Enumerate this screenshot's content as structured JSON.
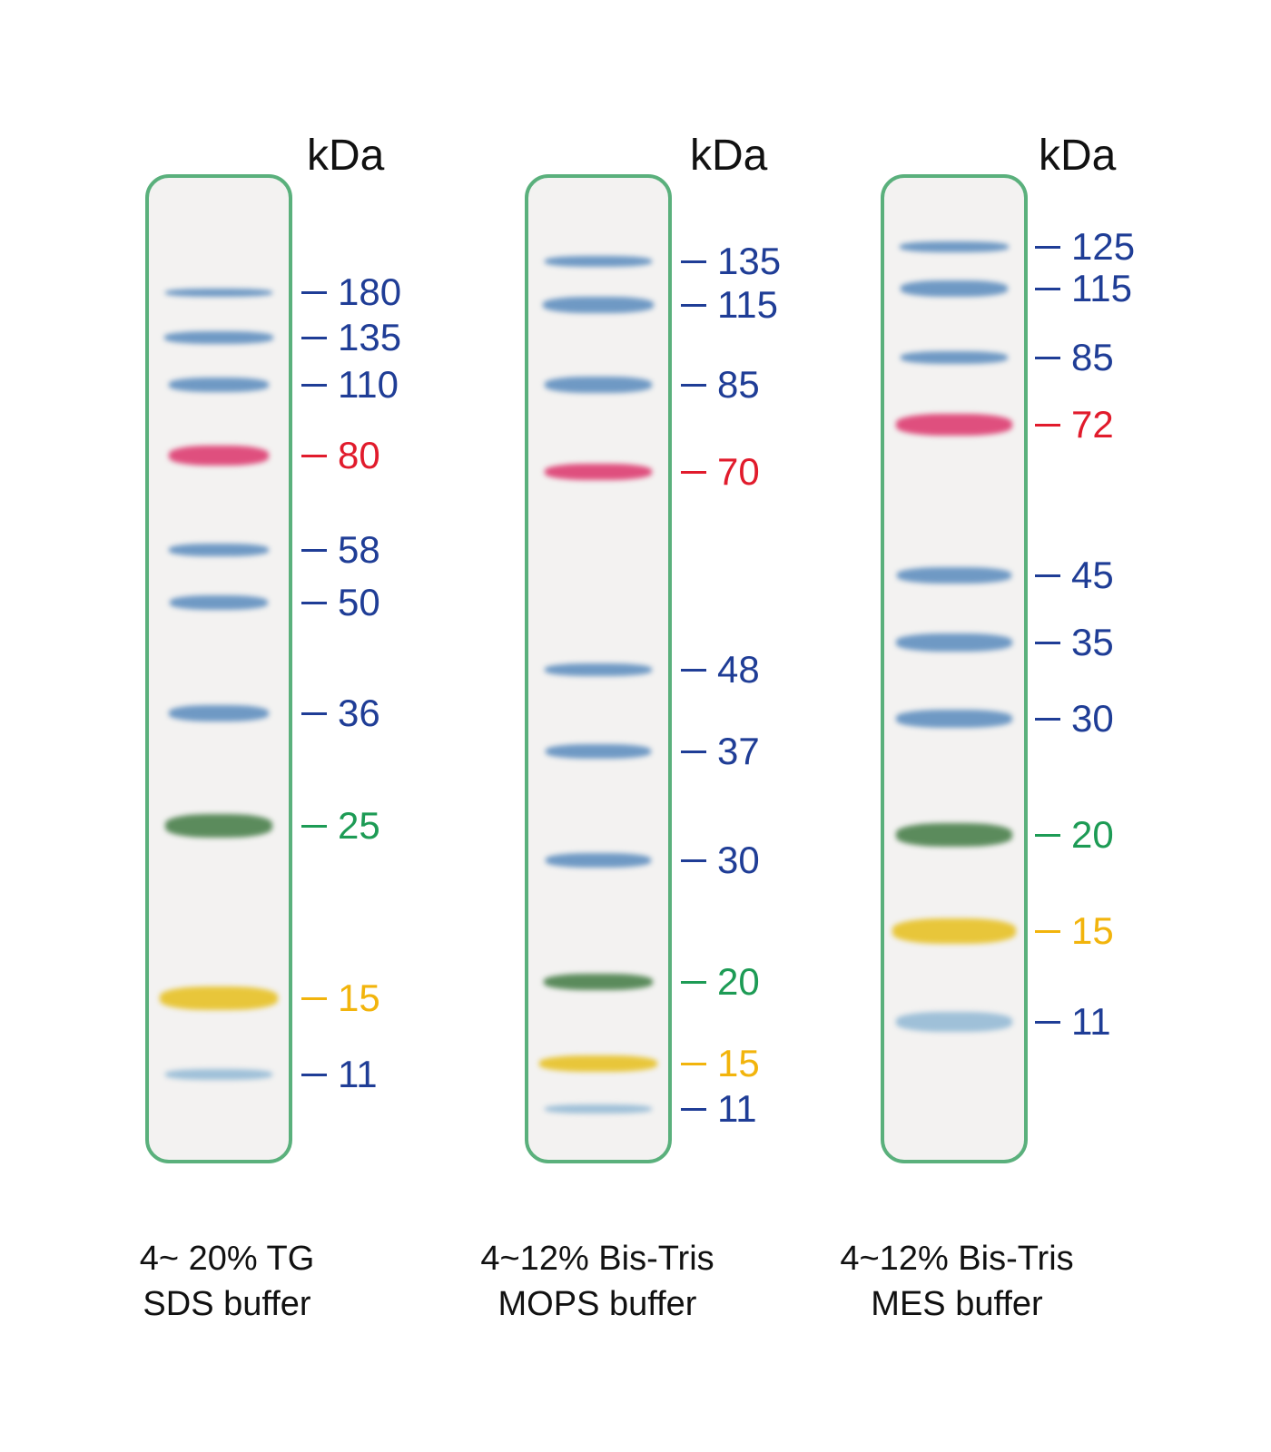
{
  "colors": {
    "blue_label": "#1f3d96",
    "red_label": "#e11b2c",
    "green_label": "#1d9b55",
    "yellow_label": "#f2b40c",
    "lane_border": "#5ab07c",
    "band_blue": "#6f99c4",
    "band_red": "#df4f7e",
    "band_green": "#5b8b5c",
    "band_yellow": "#e8c63a",
    "band_lightblue": "#9fc0d8"
  },
  "panels": [
    {
      "unit": "kDa",
      "caption_line1": "4~ 20% TG",
      "caption_line2": "SDS buffer",
      "markers": [
        {
          "label": "180",
          "color": "blue"
        },
        {
          "label": "135",
          "color": "blue"
        },
        {
          "label": "110",
          "color": "blue"
        },
        {
          "label": "80",
          "color": "red"
        },
        {
          "label": "58",
          "color": "blue"
        },
        {
          "label": "50",
          "color": "blue"
        },
        {
          "label": "36",
          "color": "blue"
        },
        {
          "label": "25",
          "color": "green"
        },
        {
          "label": "15",
          "color": "yellow"
        },
        {
          "label": "11",
          "color": "blue"
        }
      ]
    },
    {
      "unit": "kDa",
      "caption_line1": "4~12% Bis-Tris",
      "caption_line2": "MOPS buffer",
      "markers": [
        {
          "label": "135",
          "color": "blue"
        },
        {
          "label": "115",
          "color": "blue"
        },
        {
          "label": "85",
          "color": "blue"
        },
        {
          "label": "70",
          "color": "red"
        },
        {
          "label": "48",
          "color": "blue"
        },
        {
          "label": "37",
          "color": "blue"
        },
        {
          "label": "30",
          "color": "blue"
        },
        {
          "label": "20",
          "color": "green"
        },
        {
          "label": "15",
          "color": "yellow"
        },
        {
          "label": "11",
          "color": "blue"
        }
      ]
    },
    {
      "unit": "kDa",
      "caption_line1": "4~12% Bis-Tris",
      "caption_line2": "MES buffer",
      "markers": [
        {
          "label": "125",
          "color": "blue"
        },
        {
          "label": "115",
          "color": "blue"
        },
        {
          "label": "85",
          "color": "blue"
        },
        {
          "label": "72",
          "color": "red"
        },
        {
          "label": "45",
          "color": "blue"
        },
        {
          "label": "35",
          "color": "blue"
        },
        {
          "label": "30",
          "color": "blue"
        },
        {
          "label": "20",
          "color": "green"
        },
        {
          "label": "15",
          "color": "yellow"
        },
        {
          "label": "11",
          "color": "blue"
        }
      ]
    }
  ]
}
